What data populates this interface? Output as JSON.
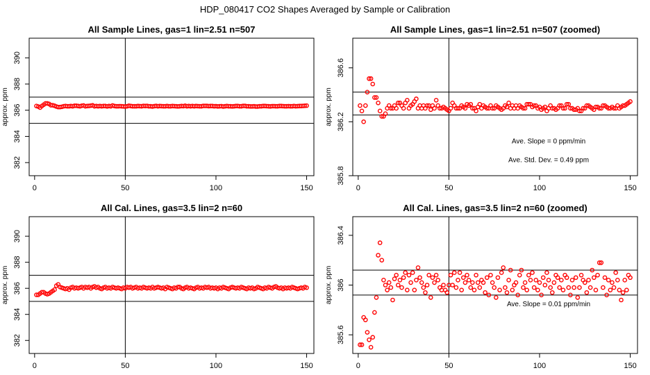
{
  "page": {
    "title": "HDP_080417  CO2 Shapes Averaged by Sample or Calibration"
  },
  "chart_data": [
    {
      "type": "scatter",
      "title": "All Sample Lines, gas=1 lin=2.51 n=507",
      "ylabel": "approx. ppm",
      "xlim": [
        -3,
        154
      ],
      "ylim": [
        381,
        391.5
      ],
      "xticks": [
        0,
        50,
        100,
        150
      ],
      "yticks": [
        382,
        384,
        386,
        388,
        390
      ],
      "hlines": [
        385,
        387
      ],
      "vlines": [
        50
      ],
      "annotations": [],
      "point_color": "#ff0000",
      "x": [
        1,
        2,
        3,
        4,
        5,
        6,
        7,
        8,
        9,
        10,
        11,
        12,
        13,
        14,
        15,
        16,
        17,
        18,
        19,
        20,
        21,
        22,
        23,
        24,
        25,
        26,
        27,
        28,
        29,
        30,
        31,
        32,
        33,
        34,
        35,
        36,
        37,
        38,
        39,
        40,
        41,
        42,
        43,
        44,
        45,
        46,
        47,
        48,
        49,
        50,
        51,
        52,
        53,
        54,
        55,
        56,
        57,
        58,
        59,
        60,
        61,
        62,
        63,
        64,
        65,
        66,
        67,
        68,
        69,
        70,
        71,
        72,
        73,
        74,
        75,
        76,
        77,
        78,
        79,
        80,
        81,
        82,
        83,
        84,
        85,
        86,
        87,
        88,
        89,
        90,
        91,
        92,
        93,
        94,
        95,
        96,
        97,
        98,
        99,
        100,
        101,
        102,
        103,
        104,
        105,
        106,
        107,
        108,
        109,
        110,
        111,
        112,
        113,
        114,
        115,
        116,
        117,
        118,
        119,
        120,
        121,
        122,
        123,
        124,
        125,
        126,
        127,
        128,
        129,
        130,
        131,
        132,
        133,
        134,
        135,
        136,
        137,
        138,
        139,
        140,
        141,
        142,
        143,
        144,
        145,
        146,
        147,
        148,
        149,
        150
      ],
      "y": [
        386.32,
        386.28,
        386.2,
        386.32,
        386.42,
        386.52,
        386.52,
        386.48,
        386.38,
        386.38,
        386.34,
        386.28,
        386.24,
        386.24,
        386.26,
        386.3,
        386.32,
        386.3,
        386.3,
        386.32,
        386.3,
        386.34,
        386.34,
        386.32,
        386.3,
        386.34,
        386.36,
        386.3,
        386.32,
        386.33,
        386.35,
        386.37,
        386.3,
        386.32,
        386.3,
        386.32,
        386.3,
        386.32,
        386.32,
        386.29,
        386.32,
        386.3,
        386.36,
        386.32,
        386.3,
        386.3,
        386.31,
        386.3,
        386.29,
        386.28,
        386.3,
        386.34,
        386.32,
        386.3,
        386.3,
        386.3,
        386.32,
        386.31,
        386.3,
        386.33,
        386.32,
        386.33,
        386.3,
        386.3,
        386.28,
        386.31,
        386.33,
        386.3,
        386.32,
        386.31,
        386.3,
        386.3,
        386.32,
        386.3,
        386.3,
        386.32,
        386.31,
        386.3,
        386.29,
        386.3,
        386.32,
        386.31,
        386.34,
        386.3,
        386.32,
        386.3,
        386.32,
        386.3,
        386.32,
        386.31,
        386.3,
        386.3,
        386.33,
        386.33,
        386.33,
        386.31,
        386.32,
        386.32,
        386.3,
        386.31,
        386.29,
        386.3,
        386.31,
        386.28,
        386.3,
        386.32,
        386.3,
        386.3,
        386.29,
        386.3,
        386.32,
        386.32,
        386.3,
        386.3,
        386.33,
        386.33,
        386.3,
        386.3,
        386.29,
        386.29,
        386.3,
        386.28,
        386.28,
        386.3,
        386.3,
        386.32,
        386.32,
        386.31,
        386.3,
        386.29,
        386.31,
        386.31,
        386.3,
        386.3,
        386.32,
        386.32,
        386.31,
        386.3,
        386.3,
        386.31,
        386.3,
        386.3,
        386.32,
        386.3,
        386.31,
        386.32,
        386.32,
        386.33,
        386.34,
        386.35
      ]
    },
    {
      "type": "scatter",
      "title": "All Sample Lines, gas=1 lin=2.51 n=507 (zoomed)",
      "ylabel": "approx. ppm",
      "xlim": [
        -3,
        154
      ],
      "ylim": [
        385.8,
        386.82
      ],
      "xticks": [
        0,
        50,
        100,
        150
      ],
      "yticks": [
        385.8,
        386.2,
        386.6
      ],
      "hlines": [
        386.25,
        386.42
      ],
      "vlines": [
        50
      ],
      "annotations": [
        {
          "text": "Ave. Slope =  0  ppm/min",
          "x": 105,
          "y": 386.04
        },
        {
          "text": "Ave. Std. Dev. =  0.49  ppm",
          "x": 105,
          "y": 385.9
        }
      ],
      "point_color": "#ff0000",
      "x": [
        1,
        2,
        3,
        4,
        5,
        6,
        7,
        8,
        9,
        10,
        11,
        12,
        13,
        14,
        15,
        16,
        17,
        18,
        19,
        20,
        21,
        22,
        23,
        24,
        25,
        26,
        27,
        28,
        29,
        30,
        31,
        32,
        33,
        34,
        35,
        36,
        37,
        38,
        39,
        40,
        41,
        42,
        43,
        44,
        45,
        46,
        47,
        48,
        49,
        50,
        51,
        52,
        53,
        54,
        55,
        56,
        57,
        58,
        59,
        60,
        61,
        62,
        63,
        64,
        65,
        66,
        67,
        68,
        69,
        70,
        71,
        72,
        73,
        74,
        75,
        76,
        77,
        78,
        79,
        80,
        81,
        82,
        83,
        84,
        85,
        86,
        87,
        88,
        89,
        90,
        91,
        92,
        93,
        94,
        95,
        96,
        97,
        98,
        99,
        100,
        101,
        102,
        103,
        104,
        105,
        106,
        107,
        108,
        109,
        110,
        111,
        112,
        113,
        114,
        115,
        116,
        117,
        118,
        119,
        120,
        121,
        122,
        123,
        124,
        125,
        126,
        127,
        128,
        129,
        130,
        131,
        132,
        133,
        134,
        135,
        136,
        137,
        138,
        139,
        140,
        141,
        142,
        143,
        144,
        145,
        146,
        147,
        148,
        149,
        150
      ],
      "y": [
        386.32,
        386.28,
        386.2,
        386.32,
        386.42,
        386.52,
        386.52,
        386.48,
        386.38,
        386.38,
        386.34,
        386.28,
        386.24,
        386.24,
        386.26,
        386.3,
        386.32,
        386.3,
        386.3,
        386.32,
        386.3,
        386.34,
        386.34,
        386.32,
        386.3,
        386.34,
        386.36,
        386.3,
        386.32,
        386.33,
        386.35,
        386.37,
        386.3,
        386.32,
        386.3,
        386.32,
        386.3,
        386.32,
        386.32,
        386.29,
        386.32,
        386.3,
        386.36,
        386.32,
        386.3,
        386.3,
        386.31,
        386.3,
        386.29,
        386.28,
        386.3,
        386.34,
        386.32,
        386.3,
        386.3,
        386.3,
        386.32,
        386.31,
        386.3,
        386.33,
        386.32,
        386.33,
        386.3,
        386.3,
        386.28,
        386.31,
        386.33,
        386.3,
        386.32,
        386.31,
        386.3,
        386.3,
        386.32,
        386.3,
        386.3,
        386.32,
        386.31,
        386.3,
        386.29,
        386.3,
        386.32,
        386.31,
        386.34,
        386.3,
        386.32,
        386.3,
        386.32,
        386.3,
        386.32,
        386.31,
        386.3,
        386.3,
        386.33,
        386.33,
        386.33,
        386.31,
        386.32,
        386.32,
        386.3,
        386.31,
        386.29,
        386.3,
        386.31,
        386.28,
        386.3,
        386.32,
        386.3,
        386.3,
        386.29,
        386.3,
        386.32,
        386.32,
        386.3,
        386.3,
        386.33,
        386.33,
        386.3,
        386.3,
        386.29,
        386.29,
        386.3,
        386.28,
        386.28,
        386.3,
        386.3,
        386.32,
        386.32,
        386.31,
        386.3,
        386.29,
        386.31,
        386.31,
        386.3,
        386.3,
        386.32,
        386.32,
        386.31,
        386.3,
        386.3,
        386.31,
        386.3,
        386.3,
        386.32,
        386.3,
        386.31,
        386.32,
        386.32,
        386.33,
        386.34,
        386.35
      ]
    },
    {
      "type": "scatter",
      "title": "All Cal. Lines, gas=3.5 lin=2 n=60",
      "ylabel": "approx. ppm",
      "xlim": [
        -3,
        154
      ],
      "ylim": [
        381,
        391.5
      ],
      "xticks": [
        0,
        50,
        100,
        150
      ],
      "yticks": [
        382,
        384,
        386,
        388,
        390
      ],
      "hlines": [
        385,
        387
      ],
      "vlines": [
        50
      ],
      "annotations": [],
      "point_color": "#ff0000",
      "x": [
        1,
        2,
        3,
        4,
        5,
        6,
        7,
        8,
        9,
        10,
        11,
        12,
        13,
        14,
        15,
        16,
        17,
        18,
        19,
        20,
        21,
        22,
        23,
        24,
        25,
        26,
        27,
        28,
        29,
        30,
        31,
        32,
        33,
        34,
        35,
        36,
        37,
        38,
        39,
        40,
        41,
        42,
        43,
        44,
        45,
        46,
        47,
        48,
        49,
        50,
        51,
        52,
        53,
        54,
        55,
        56,
        57,
        58,
        59,
        60,
        61,
        62,
        63,
        64,
        65,
        66,
        67,
        68,
        69,
        70,
        71,
        72,
        73,
        74,
        75,
        76,
        77,
        78,
        79,
        80,
        81,
        82,
        83,
        84,
        85,
        86,
        87,
        88,
        89,
        90,
        91,
        92,
        93,
        94,
        95,
        96,
        97,
        98,
        99,
        100,
        101,
        102,
        103,
        104,
        105,
        106,
        107,
        108,
        109,
        110,
        111,
        112,
        113,
        114,
        115,
        116,
        117,
        118,
        119,
        120,
        121,
        122,
        123,
        124,
        125,
        126,
        127,
        128,
        129,
        130,
        131,
        132,
        133,
        134,
        135,
        136,
        137,
        138,
        139,
        140,
        141,
        142,
        143,
        144,
        145,
        146,
        147,
        148,
        149,
        150
      ],
      "y": [
        385.5,
        385.5,
        385.6,
        385.7,
        385.7,
        385.6,
        385.55,
        385.6,
        385.7,
        385.8,
        385.9,
        386.2,
        386.3,
        386.1,
        386.05,
        386.0,
        385.95,
        386.0,
        385.9,
        386.05,
        386.1,
        386.0,
        386.05,
        386.0,
        386.05,
        386.1,
        386.0,
        386.1,
        386.05,
        386.1,
        386.0,
        386.1,
        386.15,
        386.05,
        386.1,
        386.0,
        385.95,
        386.05,
        386.1,
        386.0,
        386.05,
        386.0,
        386.1,
        386.05,
        386.0,
        386.05,
        386.0,
        385.95,
        386.05,
        386.0,
        386.1,
        386.05,
        386.1,
        386.0,
        386.05,
        386.1,
        386.0,
        386.05,
        386.0,
        386.1,
        386.05,
        386.0,
        386.05,
        386.0,
        386.1,
        386.0,
        386.05,
        386.1,
        386.05,
        386.0,
        386.05,
        385.95,
        386.1,
        386.05,
        386.0,
        385.95,
        386.05,
        386.0,
        386.1,
        386.1,
        386.0,
        385.95,
        386.05,
        386.1,
        386.0,
        386.05,
        386.0,
        385.95,
        386.05,
        386.1,
        386.0,
        386.05,
        386.0,
        386.1,
        386.05,
        386.1,
        386.0,
        386.05,
        386.0,
        386.05,
        385.95,
        386.05,
        386.0,
        386.1,
        386.05,
        386.0,
        385.95,
        386.05,
        386.1,
        386.05,
        386.0,
        386.05,
        386.0,
        386.1,
        386.05,
        386.0,
        385.95,
        386.05,
        386.0,
        386.05,
        385.95,
        386.0,
        386.1,
        386.05,
        386.0,
        385.95,
        386.05,
        386.0,
        386.1,
        386.05,
        386.0,
        386.1,
        386.15,
        386.05,
        386.0,
        386.05,
        385.95,
        386.05,
        386.0,
        386.05,
        386.0,
        386.1,
        386.05,
        386.0,
        385.95,
        386.0,
        386.05,
        386.0,
        386.1,
        386.05
      ]
    },
    {
      "type": "scatter",
      "title": "All Cal. Lines, gas=3.5 lin=2 n=60 (zoomed)",
      "ylabel": "approx. ppm",
      "xlim": [
        -3,
        154
      ],
      "ylim": [
        385.45,
        386.55
      ],
      "xticks": [
        0,
        50,
        100,
        150
      ],
      "yticks": [
        385.6,
        386.0,
        386.4
      ],
      "hlines": [
        385.92,
        386.12
      ],
      "vlines": [
        50
      ],
      "annotations": [
        {
          "text": "Ave. Slope =  0.01  ppm/min",
          "x": 105,
          "y": 385.83
        }
      ],
      "point_color": "#ff0000",
      "x": [
        1,
        2,
        3,
        4,
        5,
        6,
        7,
        8,
        9,
        10,
        11,
        12,
        13,
        14,
        15,
        16,
        17,
        18,
        19,
        20,
        21,
        22,
        23,
        24,
        25,
        26,
        27,
        28,
        29,
        30,
        31,
        32,
        33,
        34,
        35,
        36,
        37,
        38,
        39,
        40,
        41,
        42,
        43,
        44,
        45,
        46,
        47,
        48,
        49,
        50,
        51,
        52,
        53,
        54,
        55,
        56,
        57,
        58,
        59,
        60,
        61,
        62,
        63,
        64,
        65,
        66,
        67,
        68,
        69,
        70,
        71,
        72,
        73,
        74,
        75,
        76,
        77,
        78,
        79,
        80,
        81,
        82,
        83,
        84,
        85,
        86,
        87,
        88,
        89,
        90,
        91,
        92,
        93,
        94,
        95,
        96,
        97,
        98,
        99,
        100,
        101,
        102,
        103,
        104,
        105,
        106,
        107,
        108,
        109,
        110,
        111,
        112,
        113,
        114,
        115,
        116,
        117,
        118,
        119,
        120,
        121,
        122,
        123,
        124,
        125,
        126,
        127,
        128,
        129,
        130,
        131,
        132,
        133,
        134,
        135,
        136,
        137,
        138,
        139,
        140,
        141,
        142,
        143,
        144,
        145,
        146,
        147,
        148,
        149,
        150
      ],
      "y": [
        385.52,
        385.52,
        385.74,
        385.72,
        385.62,
        385.56,
        385.5,
        385.58,
        385.78,
        385.9,
        386.24,
        386.34,
        386.2,
        386.04,
        386.0,
        385.96,
        386.02,
        385.98,
        385.88,
        386.05,
        386.08,
        386.0,
        386.04,
        385.98,
        386.06,
        386.1,
        385.96,
        386.08,
        386.02,
        386.1,
        385.96,
        386.04,
        386.14,
        386.06,
        386.02,
        385.98,
        385.94,
        386.0,
        386.08,
        385.9,
        386.06,
        386.02,
        386.08,
        386.04,
        385.98,
        385.96,
        386.0,
        385.96,
        385.94,
        386.0,
        386.08,
        386.0,
        386.1,
        385.98,
        386.04,
        386.1,
        385.96,
        386.06,
        386.02,
        386.08,
        386.04,
        385.98,
        386.02,
        385.96,
        386.08,
        386.02,
        385.98,
        386.04,
        386.02,
        385.94,
        386.06,
        385.92,
        386.08,
        386.02,
        385.98,
        385.9,
        386.06,
        385.96,
        386.1,
        386.14,
        385.98,
        385.94,
        386.04,
        386.12,
        385.96,
        386.0,
        386.02,
        385.92,
        386.08,
        386.12,
        385.98,
        386.02,
        385.96,
        386.08,
        386.04,
        386.1,
        385.98,
        386.04,
        385.96,
        386.02,
        385.92,
        386.06,
        386.0,
        386.1,
        386.04,
        385.98,
        385.94,
        386.02,
        386.08,
        386.06,
        385.98,
        386.04,
        385.96,
        386.08,
        386.06,
        385.98,
        385.92,
        386.04,
        385.98,
        386.06,
        385.9,
        385.98,
        386.08,
        386.04,
        386.02,
        385.94,
        386.04,
        385.98,
        386.12,
        386.06,
        385.96,
        386.08,
        386.18,
        386.18,
        385.98,
        386.06,
        385.92,
        386.04,
        385.96,
        386.02,
        385.98,
        386.1,
        386.04,
        385.96,
        385.88,
        385.94,
        386.04,
        385.96,
        386.08,
        386.06
      ]
    }
  ]
}
